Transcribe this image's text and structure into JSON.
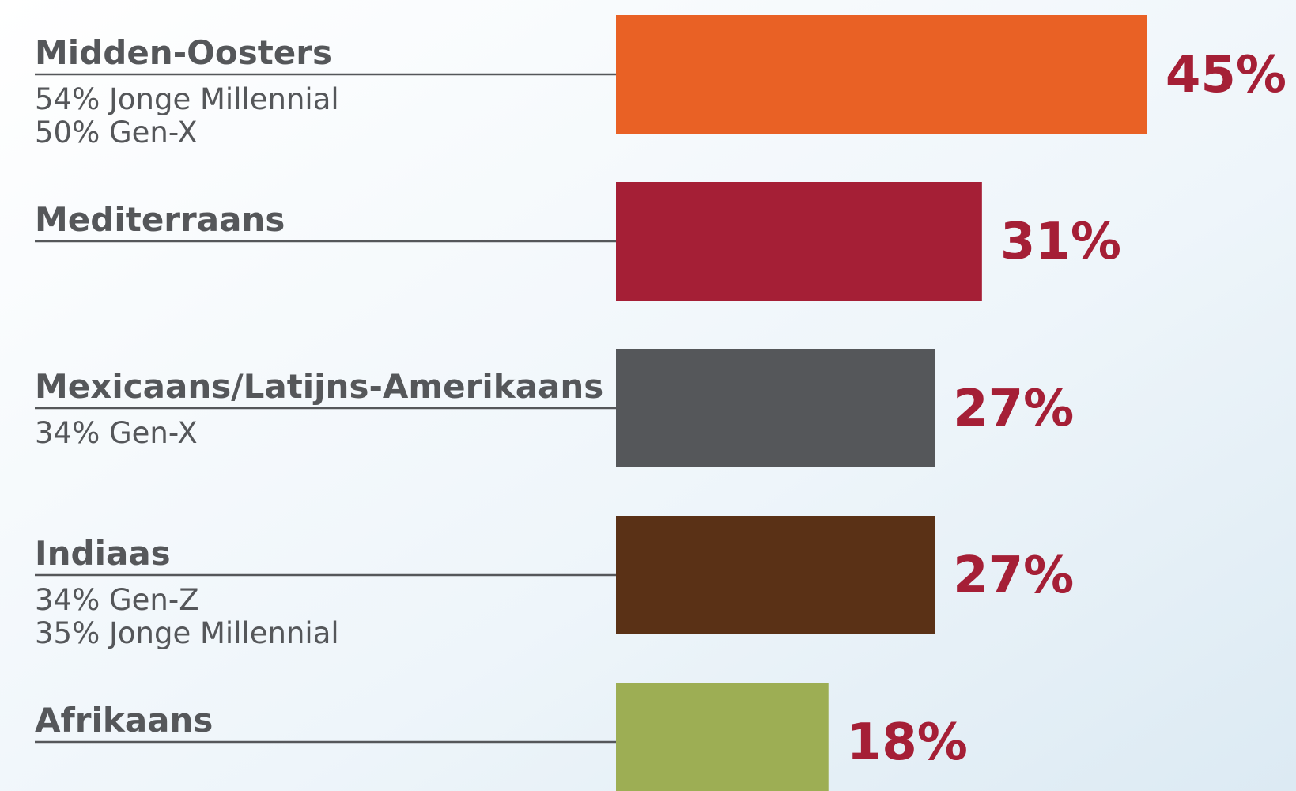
{
  "chart_data": {
    "type": "bar",
    "categories": [
      "Midden-Oosters",
      "Mediterraans",
      "Mexicaans/Latijns-Amerikaans",
      "Indiaas",
      "Afrikaans"
    ],
    "notes": [
      [
        "54% Jonge Millennial",
        "50% Gen-X"
      ],
      [],
      [
        "34% Gen-X"
      ],
      [
        "34% Gen-Z",
        "35% Jonge Millennial"
      ],
      []
    ],
    "values": [
      45,
      31,
      27,
      27,
      18
    ],
    "value_labels": [
      "45%",
      "31%",
      "27%",
      "27%",
      "18%"
    ],
    "colors": [
      "#e96125",
      "#a51f36",
      "#55575a",
      "#5a3116",
      "#9dae54"
    ],
    "label_color": "#a51f36"
  }
}
